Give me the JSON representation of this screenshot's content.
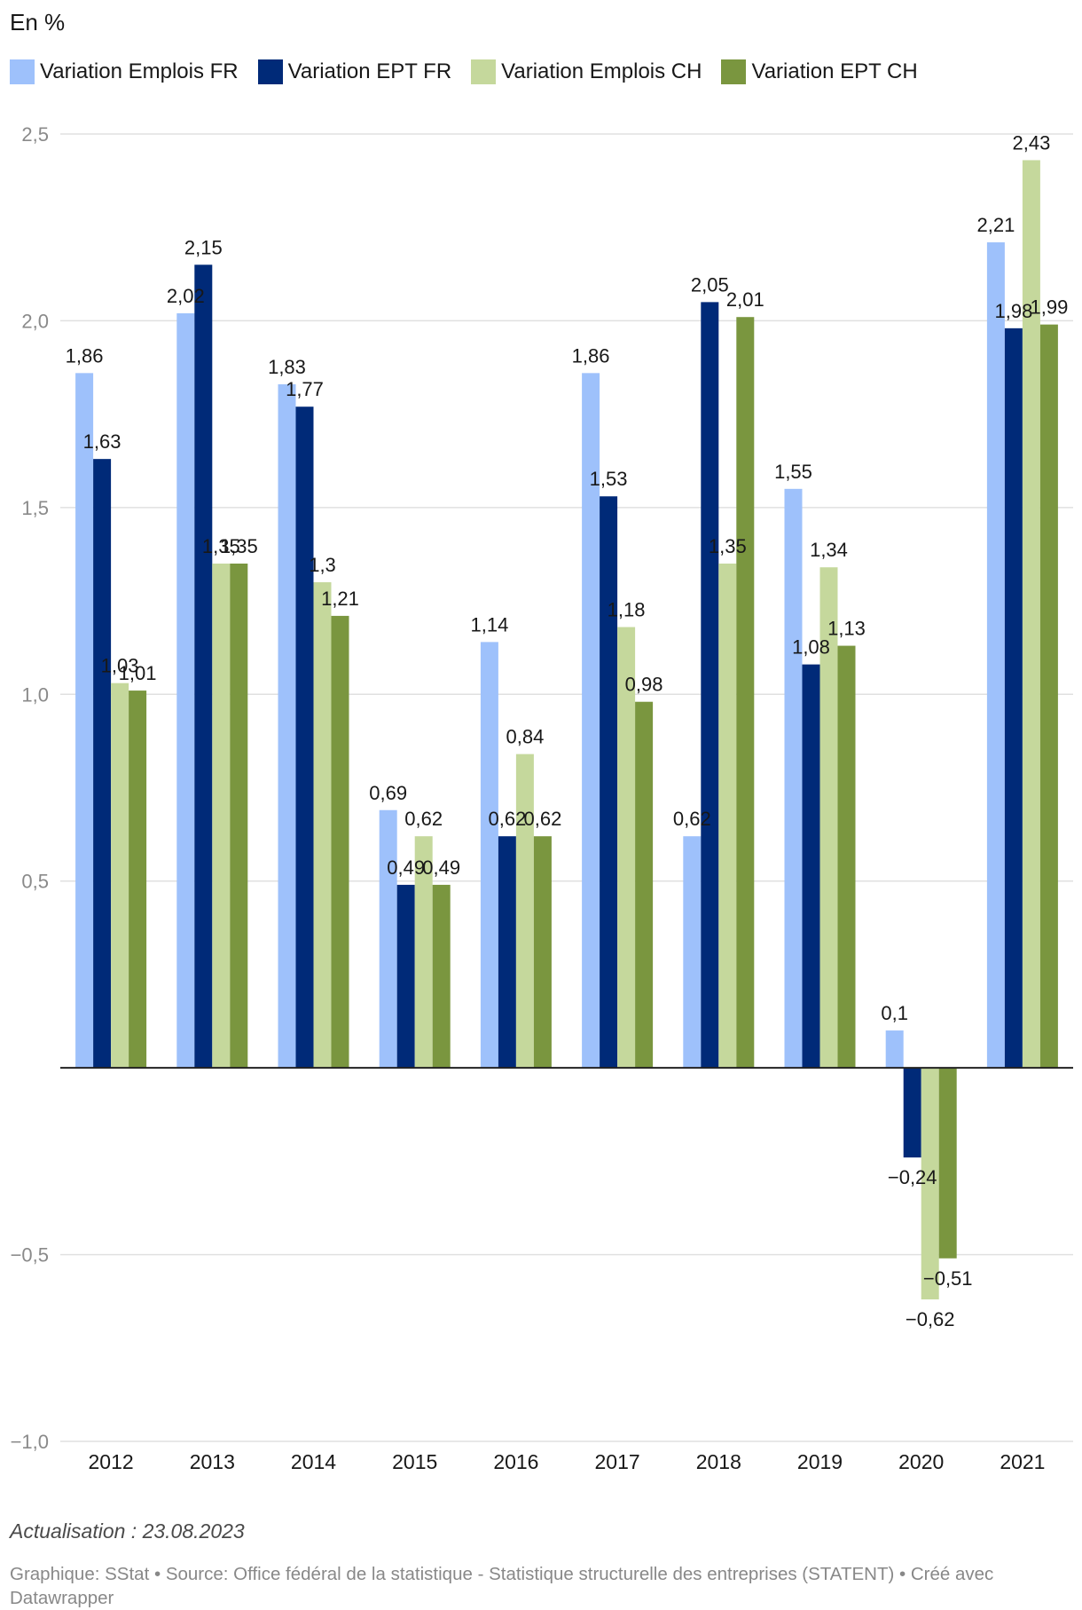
{
  "unit_label": "En %",
  "footer": {
    "update": "Actualisation : 23.08.2023",
    "source": "Graphique: SStat • Source: Office fédéral de la statistique - Statistique structurelle des entreprises (STATENT) • Créé avec Datawrapper"
  },
  "chart_data": {
    "type": "bar",
    "title": "",
    "xlabel": "",
    "ylabel": "En %",
    "categories": [
      "2012",
      "2013",
      "2014",
      "2015",
      "2016",
      "2017",
      "2018",
      "2019",
      "2020",
      "2021"
    ],
    "series": [
      {
        "name": "Variation Emplois FR",
        "color": "#9ec1fb",
        "values": [
          1.86,
          2.02,
          1.83,
          0.69,
          1.14,
          1.86,
          0.62,
          1.55,
          0.1,
          2.21
        ]
      },
      {
        "name": "Variation EPT FR",
        "color": "#002a78",
        "values": [
          1.63,
          2.15,
          1.77,
          0.49,
          0.62,
          1.53,
          2.05,
          1.08,
          -0.24,
          1.98
        ]
      },
      {
        "name": "Variation Emplois CH",
        "color": "#c5d89c",
        "values": [
          1.03,
          1.35,
          1.3,
          0.62,
          0.84,
          1.18,
          1.35,
          1.34,
          -0.62,
          2.43
        ]
      },
      {
        "name": "Variation EPT CH",
        "color": "#7a963f",
        "values": [
          1.01,
          1.35,
          1.21,
          0.49,
          0.62,
          0.98,
          2.01,
          1.13,
          -0.51,
          1.99
        ]
      }
    ],
    "value_labels": [
      [
        "1,86",
        "2,02",
        "1,83",
        "0,69",
        "1,14",
        "1,86",
        "0,62",
        "1,55",
        "0,1",
        "2,21"
      ],
      [
        "1,63",
        "2,15",
        "1,77",
        "0,49",
        "0,62",
        "1,53",
        "2,05",
        "1,08",
        "−0,24",
        "1,98"
      ],
      [
        "1,03",
        "1,35",
        "1,3",
        "0,62",
        "0,84",
        "1,18",
        "1,35",
        "1,34",
        "−0,62",
        "2,43"
      ],
      [
        "1,01",
        "1,35",
        "1,21",
        "0,49",
        "0,62",
        "0,98",
        "2,01",
        "1,13",
        "−0,51",
        "1,99"
      ]
    ],
    "yticks": [
      2.5,
      2.0,
      1.5,
      1.0,
      0.5,
      -0.5,
      -1.0
    ],
    "ytick_labels": [
      "2,5",
      "2,0",
      "1,5",
      "1,0",
      "0,5",
      "−0,5",
      "−1,0"
    ],
    "ylim": [
      -1.0,
      2.5
    ],
    "grid": true,
    "legend_position": "top-left"
  }
}
